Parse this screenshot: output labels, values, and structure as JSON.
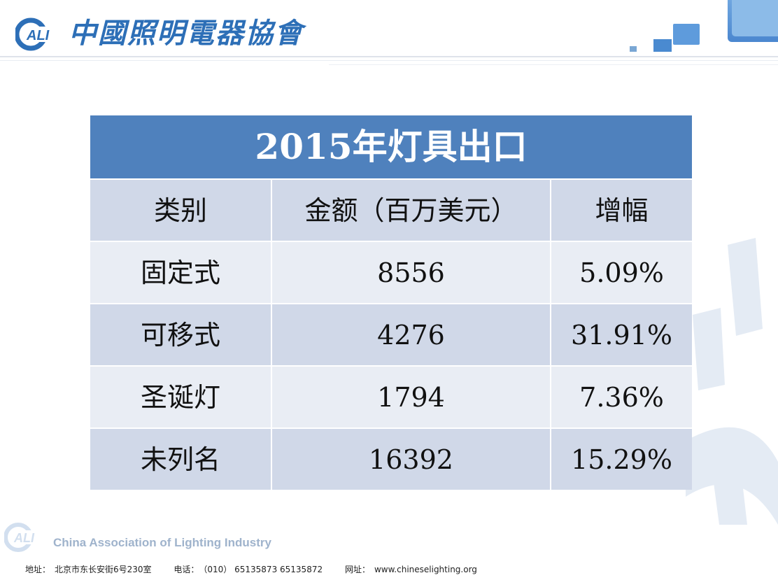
{
  "header": {
    "logo_text": "ALI",
    "org_name": "中國照明電器協會"
  },
  "table": {
    "title": "2015年灯具出口",
    "columns": [
      "类别",
      "金额（百万美元）",
      "增幅"
    ],
    "rows": [
      {
        "category": "固定式",
        "amount": "8556",
        "growth": "5.09%"
      },
      {
        "category": "可移式",
        "amount": "4276",
        "growth": "31.91%"
      },
      {
        "category": "圣诞灯",
        "amount": "1794",
        "growth": "7.36%"
      },
      {
        "category": "未列名",
        "amount": "16392",
        "growth": "15.29%"
      }
    ]
  },
  "footer": {
    "logo_text": "ALI",
    "english_name": "China Association of Lighting Industry",
    "address_label": "地址：",
    "address": "北京市东长安街6号230室",
    "phone_label": "电话：",
    "phone": "（010） 65135873 65135872",
    "web_label": "网址：",
    "web": "www.chineselighting.org"
  },
  "colors": {
    "title_bg": "#4f81bd",
    "row_dark": "#d0d8e8",
    "row_light": "#e9edf4",
    "brand_blue": "#2d6fb7"
  }
}
